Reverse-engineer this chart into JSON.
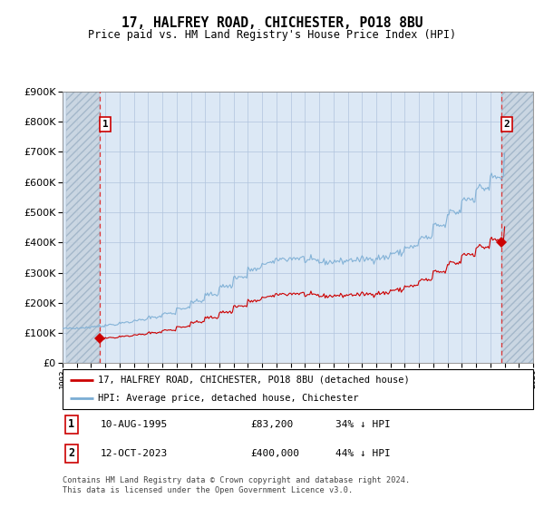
{
  "title": "17, HALFREY ROAD, CHICHESTER, PO18 8BU",
  "subtitle": "Price paid vs. HM Land Registry's House Price Index (HPI)",
  "sale1_price": 83200,
  "sale2_price": 400000,
  "ylim": [
    0,
    900000
  ],
  "yticks": [
    0,
    100000,
    200000,
    300000,
    400000,
    500000,
    600000,
    700000,
    800000,
    900000
  ],
  "xlim_start": 1993.25,
  "xlim_end": 2026.0,
  "legend_line1": "17, HALFREY ROAD, CHICHESTER, PO18 8BU (detached house)",
  "legend_line2": "HPI: Average price, detached house, Chichester",
  "footer": "Contains HM Land Registry data © Crown copyright and database right 2024.\nThis data is licensed under the Open Government Licence v3.0.",
  "sale_color": "#cc0000",
  "hpi_color": "#7aadd4",
  "chart_bg_color": "#dce8f5",
  "hatch_color": "#c0c8d4",
  "grid_color": "#b0c4de",
  "dashed_line_color": "#dd3333",
  "sale1_x": 1995.625,
  "sale2_x": 2023.792
}
